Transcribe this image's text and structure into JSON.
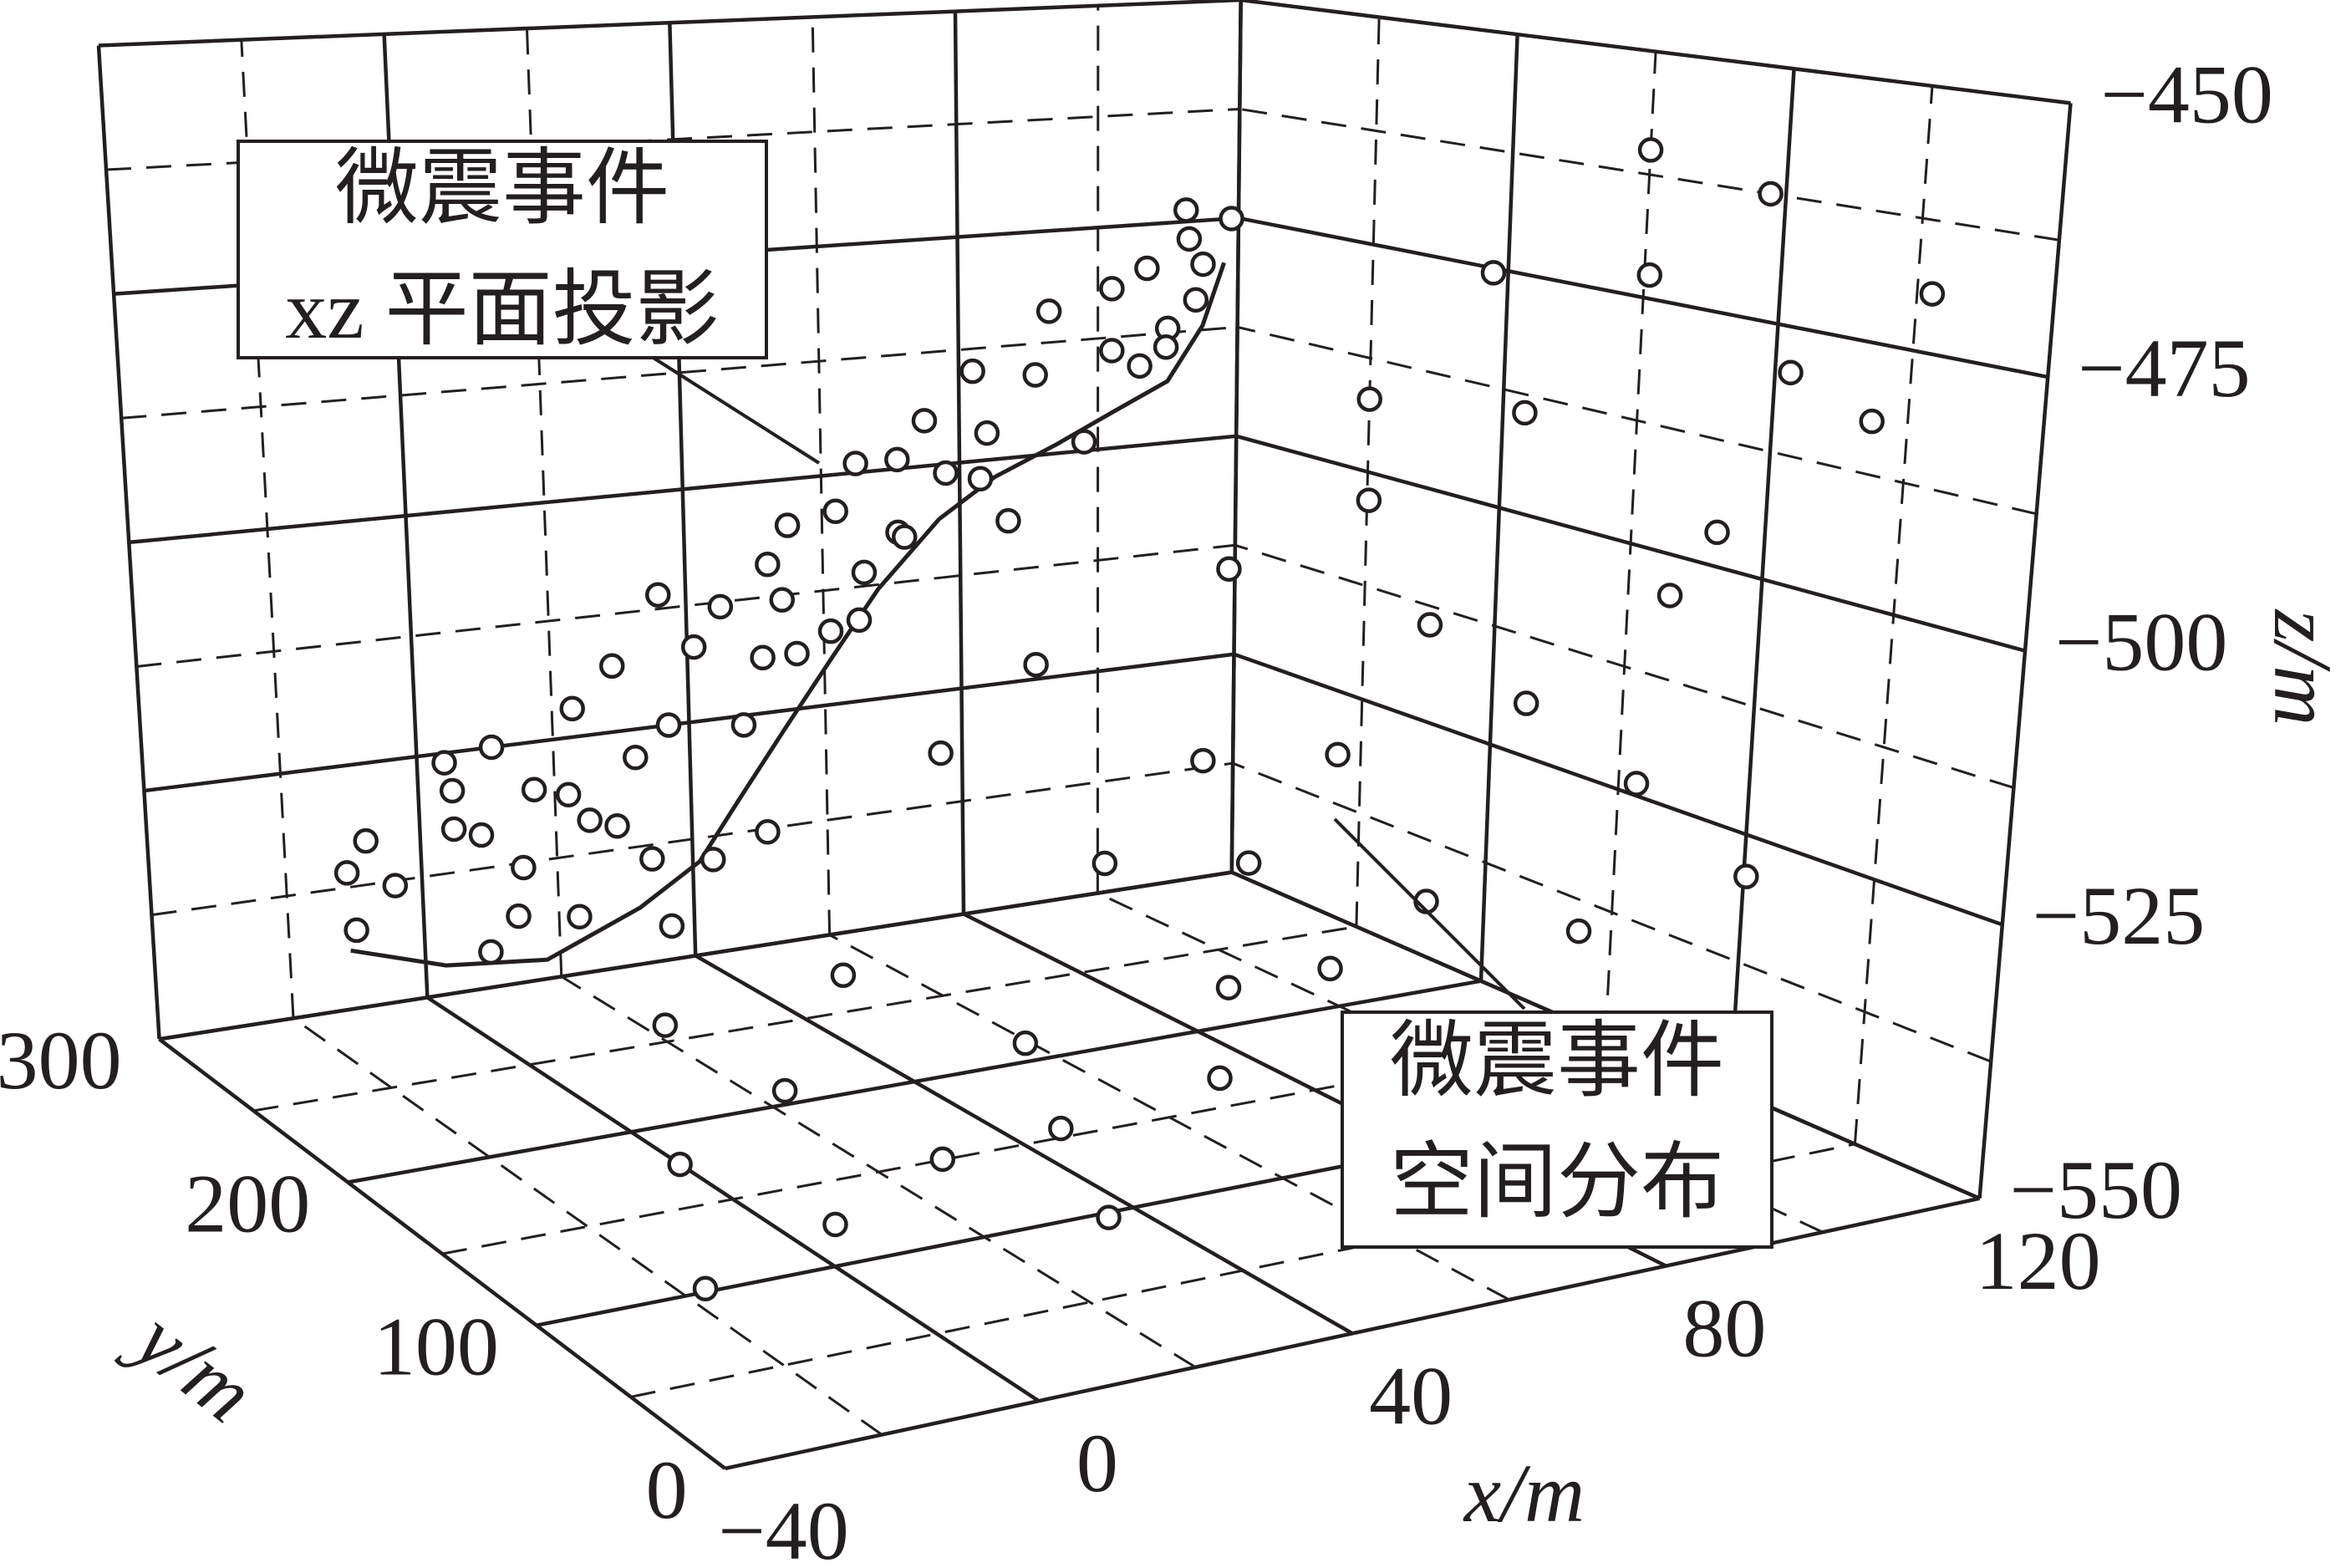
{
  "chart_data": {
    "type": "scatter3d",
    "xlabel": "x/m",
    "ylabel": "y/m",
    "zlabel": "z/m",
    "xlim": [
      -40,
      120
    ],
    "ylim": [
      0,
      300
    ],
    "zlim": [
      -550,
      -450
    ],
    "xticks": [
      {
        "value": -40,
        "label": "−40"
      },
      0,
      40,
      80,
      120
    ],
    "yticks": [
      0,
      100,
      200,
      300
    ],
    "zticks": [
      {
        "value": -550,
        "label": "−550"
      },
      {
        "value": -525,
        "label": "−525"
      },
      {
        "value": -500,
        "label": "−500"
      },
      {
        "value": -475,
        "label": "−475"
      },
      {
        "value": -450,
        "label": "−450"
      }
    ],
    "grid": true,
    "color": "#231f20",
    "series": [
      {
        "x": [
          110,
          115,
          105,
          118,
          100,
          112,
          95,
          108,
          120,
          90,
          115,
          100,
          85,
          110,
          95,
          80,
          70,
          75,
          60,
          50,
          40,
          30,
          20,
          10,
          0,
          -10,
          -20,
          25,
          45,
          55,
          35,
          15,
          65,
          85,
          95,
          105,
          120,
          118,
          65,
          55,
          5,
          -5,
          30,
          70,
          80
        ],
        "y": [
          120,
          80,
          150,
          200,
          60,
          40,
          180,
          100,
          250,
          220,
          30,
          130,
          160,
          70,
          90,
          200,
          240,
          130,
          180,
          220,
          150,
          200,
          120,
          160,
          100,
          140,
          90,
          60,
          80,
          110,
          250,
          230,
          60,
          40,
          260,
          280,
          150,
          100,
          280,
          270,
          200,
          250,
          100,
          150,
          110
        ],
        "z": [
          -470,
          -478,
          -485,
          -475,
          -490,
          -480,
          -495,
          -500,
          -492,
          -505,
          -468,
          -512,
          -518,
          -525,
          -530,
          -522,
          -515,
          -535,
          -528,
          -520,
          -540,
          -538,
          -545,
          -542,
          -546,
          -544,
          -548,
          -544,
          -536,
          -532,
          -530,
          -535,
          -520,
          -510,
          -485,
          -472,
          -460,
          -462,
          -505,
          -512,
          -540,
          -538,
          -541,
          -526,
          -500
        ]
      }
    ],
    "projection": {
      "x": [
        -11,
        -10,
        -8,
        -4,
        4,
        5,
        9,
        14,
        17,
        23,
        25,
        29,
        32,
        36,
        37,
        41,
        43,
        45,
        48,
        52,
        55,
        56,
        61,
        65,
        66,
        62,
        71,
        71,
        75,
        78,
        82,
        84,
        87,
        91,
        93,
        98,
        102,
        102,
        106,
        107,
        110,
        113,
        114,
        115,
        119,
        34,
        22,
        29,
        15,
        5,
        51,
        54,
        83,
        23,
        11
      ],
      "z": [
        -536,
        -542,
        -533,
        -538,
        -526,
        -529,
        -534,
        -543,
        -530,
        -522,
        -534,
        -518,
        -528,
        -511,
        -525,
        -517,
        -540,
        -513,
        -526,
        -509,
        -505,
        -519,
        -517,
        -499,
        -511,
        -504,
        -499,
        -507,
        -495,
        -501,
        -490,
        -497,
        -507,
        -491,
        -484,
        -499,
        -489,
        -482,
        -491,
        -480,
        -487,
        -477,
        -484,
        -480,
        -475,
        -539,
        -531,
        -535,
        -538,
        -533,
        -519,
        -513,
        -502,
        -544,
        -525
      ]
    },
    "curve": {
      "x": [
        -11,
        3,
        18,
        32,
        41,
        47,
        54,
        61,
        68,
        77,
        85,
        94,
        102,
        110,
        115,
        118
      ],
      "z": [
        -544,
        -547,
        -548,
        -544,
        -540,
        -534,
        -527,
        -520,
        -513,
        -506,
        -502,
        -499,
        -496,
        -493,
        -487,
        -480
      ]
    },
    "annotations": [
      {
        "lines": [
          "微震事件",
          "xz 平面投影"
        ]
      },
      {
        "lines": [
          "微震事件",
          "空间分布"
        ]
      }
    ]
  }
}
